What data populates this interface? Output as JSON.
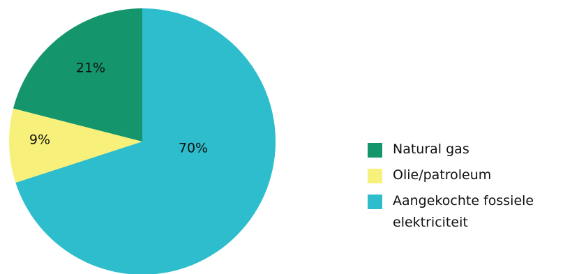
{
  "chart_data": {
    "type": "pie",
    "start_angle_deg": 0,
    "direction": "clockwise",
    "slices": [
      {
        "label": "Aangekochte fossiele elektriciteit",
        "value": 70,
        "value_label": "70%",
        "color": "#2EBDCC"
      },
      {
        "label": "Olie/patroleum",
        "value": 9,
        "value_label": "9%",
        "color": "#F7F07A"
      },
      {
        "label": "Natural gas",
        "value": 21,
        "value_label": "21%",
        "color": "#14956B"
      }
    ],
    "legend": {
      "placement": "right",
      "items": [
        {
          "label": "Natural gas",
          "color": "#14956B"
        },
        {
          "label": "Olie/patroleum",
          "color": "#F7F07A"
        },
        {
          "label": "Aangekochte fossiele elektriciteit",
          "color": "#2EBDCC"
        }
      ]
    }
  }
}
